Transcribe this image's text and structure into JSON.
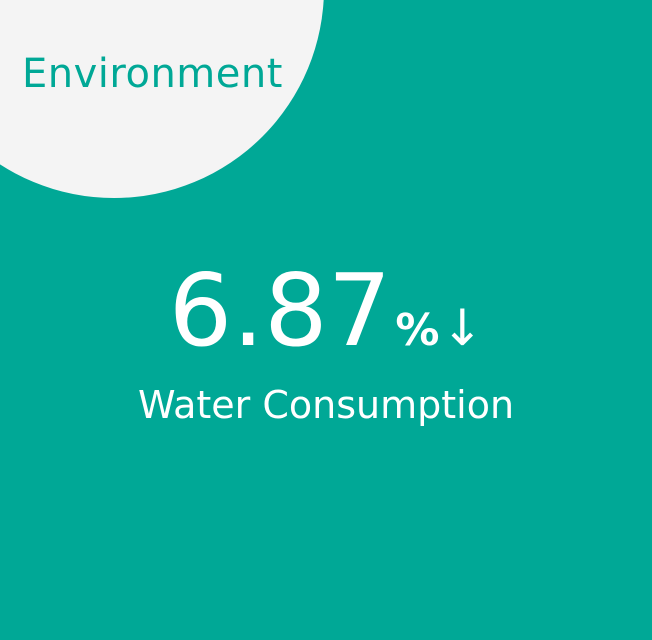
{
  "category": "Environment",
  "stat": {
    "value": "6.87",
    "unit": "%",
    "trend_arrow": "↓"
  },
  "metric_label": "Water Consumption",
  "colors": {
    "background": "#00A896",
    "circle": "#F4F4F4",
    "text": "#FFFFFF"
  },
  "icons": {
    "trend": "arrow-down-icon"
  }
}
